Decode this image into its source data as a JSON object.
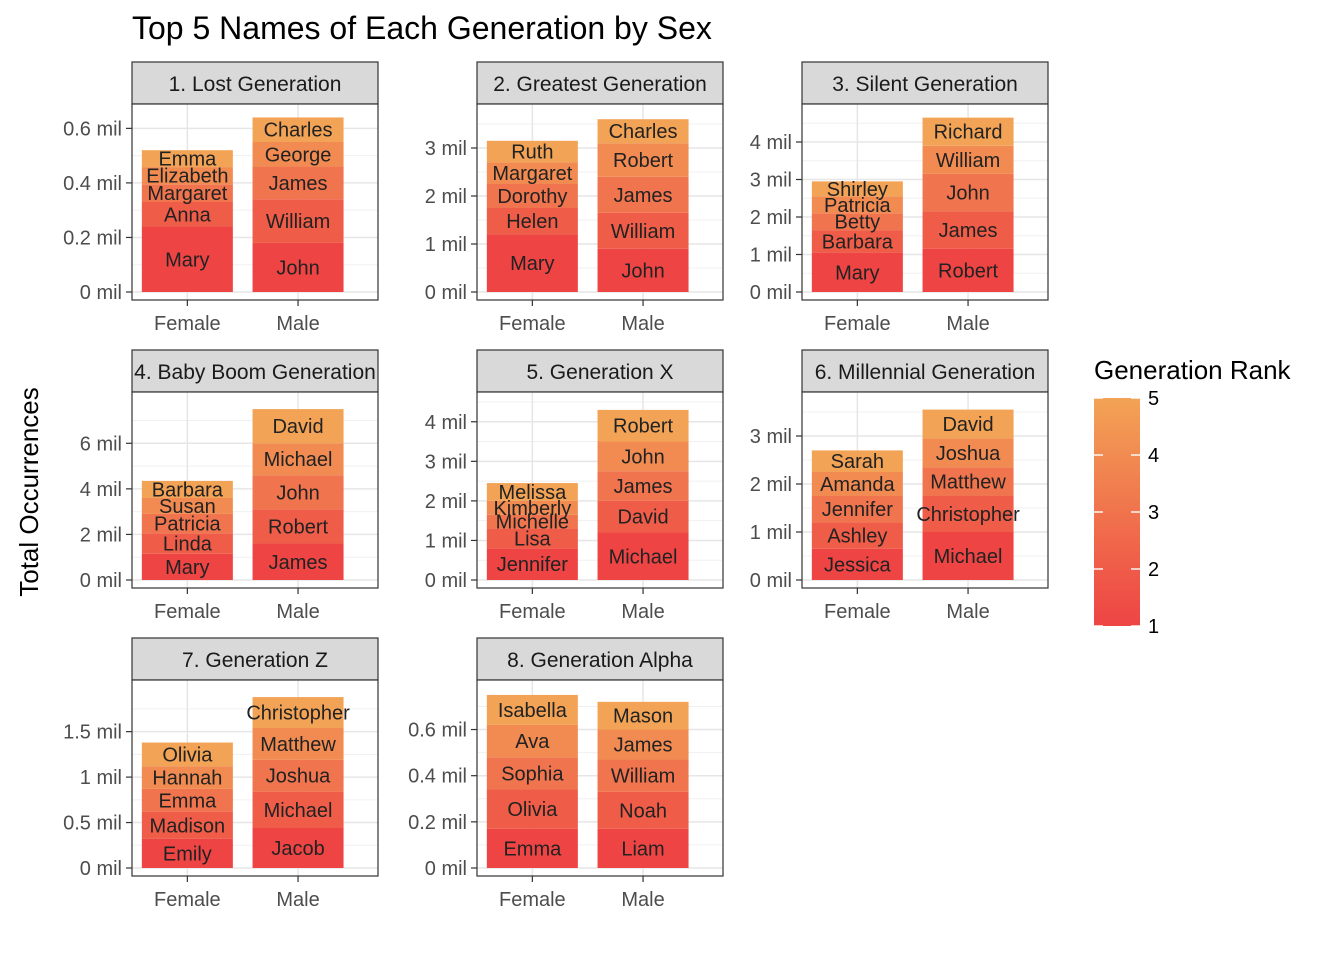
{
  "chart_data": {
    "type": "bar",
    "stacked": true,
    "title": "Top 5 Names of Each Generation by Sex",
    "ylabel": "Total Occurrences",
    "xlabel": "",
    "categories": [
      "Female",
      "Male"
    ],
    "y_unit_label": "mil",
    "legend": {
      "title": "Generation Rank",
      "position": "right",
      "min": 1,
      "max": 5,
      "ticks": [
        "1",
        "2",
        "3",
        "4",
        "5"
      ],
      "color_low": "#ee4444",
      "color_high": "#f2a355"
    },
    "panels": [
      {
        "strip": "1. Lost Generation",
        "y_ticks": [
          0,
          0.2,
          0.4,
          0.6
        ],
        "y_tick_labels": [
          "0 mil",
          "0.2 mil",
          "0.4 mil",
          "0.6 mil"
        ],
        "ylim": [
          0,
          0.66
        ],
        "stacks": [
          [
            {
              "name": "Mary",
              "rank": 1,
              "value": 0.24
            },
            {
              "name": "Anna",
              "rank": 2,
              "value": 0.09
            },
            {
              "name": "Margaret",
              "rank": 3,
              "value": 0.065
            },
            {
              "name": "Elizabeth",
              "rank": 4,
              "value": 0.063
            },
            {
              "name": "Emma",
              "rank": 5,
              "value": 0.062
            }
          ],
          [
            {
              "name": "John",
              "rank": 1,
              "value": 0.18
            },
            {
              "name": "William",
              "rank": 2,
              "value": 0.16
            },
            {
              "name": "James",
              "rank": 3,
              "value": 0.12
            },
            {
              "name": "George",
              "rank": 4,
              "value": 0.09
            },
            {
              "name": "Charles",
              "rank": 5,
              "value": 0.09
            }
          ]
        ]
      },
      {
        "strip": "2. Greatest Generation",
        "y_ticks": [
          0,
          1,
          2,
          3
        ],
        "y_tick_labels": [
          "0 mil",
          "1 mil",
          "2 mil",
          "3 mil"
        ],
        "ylim": [
          0,
          3.75
        ],
        "stacks": [
          [
            {
              "name": "Mary",
              "rank": 1,
              "value": 1.2
            },
            {
              "name": "Helen",
              "rank": 2,
              "value": 0.55
            },
            {
              "name": "Dorothy",
              "rank": 3,
              "value": 0.5
            },
            {
              "name": "Margaret",
              "rank": 4,
              "value": 0.45
            },
            {
              "name": "Ruth",
              "rank": 5,
              "value": 0.45
            }
          ],
          [
            {
              "name": "John",
              "rank": 1,
              "value": 0.9
            },
            {
              "name": "William",
              "rank": 2,
              "value": 0.75
            },
            {
              "name": "James",
              "rank": 3,
              "value": 0.75
            },
            {
              "name": "Robert",
              "rank": 4,
              "value": 0.7
            },
            {
              "name": "Charles",
              "rank": 5,
              "value": 0.5
            }
          ]
        ]
      },
      {
        "strip": "3. Silent Generation",
        "y_ticks": [
          0,
          1,
          2,
          3,
          4
        ],
        "y_tick_labels": [
          "0 mil",
          "1 mil",
          "2 mil",
          "3 mil",
          "4 mil"
        ],
        "ylim": [
          0,
          4.8
        ],
        "stacks": [
          [
            {
              "name": "Mary",
              "rank": 1,
              "value": 1.05
            },
            {
              "name": "Barbara",
              "rank": 2,
              "value": 0.6
            },
            {
              "name": "Betty",
              "rank": 3,
              "value": 0.45
            },
            {
              "name": "Patricia",
              "rank": 4,
              "value": 0.45
            },
            {
              "name": "Shirley",
              "rank": 5,
              "value": 0.4
            }
          ],
          [
            {
              "name": "Robert",
              "rank": 1,
              "value": 1.15
            },
            {
              "name": "James",
              "rank": 2,
              "value": 1.0
            },
            {
              "name": "John",
              "rank": 3,
              "value": 1.0
            },
            {
              "name": "William",
              "rank": 4,
              "value": 0.75
            },
            {
              "name": "Richard",
              "rank": 5,
              "value": 0.75
            }
          ]
        ]
      },
      {
        "strip": "4. Baby Boom Generation",
        "y_ticks": [
          0,
          2,
          4,
          6
        ],
        "y_tick_labels": [
          "0 mil",
          "2 mil",
          "4 mil",
          "6 mil"
        ],
        "ylim": [
          0,
          7.9
        ],
        "stacks": [
          [
            {
              "name": "Mary",
              "rank": 1,
              "value": 1.15
            },
            {
              "name": "Linda",
              "rank": 2,
              "value": 0.9
            },
            {
              "name": "Patricia",
              "rank": 3,
              "value": 0.85
            },
            {
              "name": "Susan",
              "rank": 4,
              "value": 0.7
            },
            {
              "name": "Barbara",
              "rank": 5,
              "value": 0.75
            }
          ],
          [
            {
              "name": "James",
              "rank": 1,
              "value": 1.6
            },
            {
              "name": "Robert",
              "rank": 2,
              "value": 1.5
            },
            {
              "name": "John",
              "rank": 3,
              "value": 1.5
            },
            {
              "name": "Michael",
              "rank": 4,
              "value": 1.4
            },
            {
              "name": "David",
              "rank": 5,
              "value": 1.5
            }
          ]
        ]
      },
      {
        "strip": "5. Generation X",
        "y_ticks": [
          0,
          1,
          2,
          3,
          4
        ],
        "y_tick_labels": [
          "0 mil",
          "1 mil",
          "2 mil",
          "3 mil",
          "4 mil"
        ],
        "ylim": [
          0,
          4.55
        ],
        "stacks": [
          [
            {
              "name": "Jennifer",
              "rank": 1,
              "value": 0.8
            },
            {
              "name": "Lisa",
              "rank": 2,
              "value": 0.5
            },
            {
              "name": "Michelle",
              "rank": 3,
              "value": 0.35
            },
            {
              "name": "Kimberly",
              "rank": 4,
              "value": 0.35
            },
            {
              "name": "Melissa",
              "rank": 5,
              "value": 0.45
            }
          ],
          [
            {
              "name": "Michael",
              "rank": 1,
              "value": 1.2
            },
            {
              "name": "David",
              "rank": 2,
              "value": 0.8
            },
            {
              "name": "James",
              "rank": 3,
              "value": 0.75
            },
            {
              "name": "John",
              "rank": 4,
              "value": 0.75
            },
            {
              "name": "Robert",
              "rank": 5,
              "value": 0.8
            }
          ]
        ]
      },
      {
        "strip": "6. Millennial Generation",
        "y_ticks": [
          0,
          1,
          2,
          3
        ],
        "y_tick_labels": [
          "0 mil",
          "1 mil",
          "2 mil",
          "3 mil"
        ],
        "ylim": [
          0,
          3.75
        ],
        "stacks": [
          [
            {
              "name": "Jessica",
              "rank": 1,
              "value": 0.65
            },
            {
              "name": "Ashley",
              "rank": 2,
              "value": 0.55
            },
            {
              "name": "Jennifer",
              "rank": 3,
              "value": 0.55
            },
            {
              "name": "Amanda",
              "rank": 4,
              "value": 0.5
            },
            {
              "name": "Sarah",
              "rank": 5,
              "value": 0.45
            }
          ],
          [
            {
              "name": "Michael",
              "rank": 1,
              "value": 1.0
            },
            {
              "name": "Christopher",
              "rank": 2,
              "value": 0.75
            },
            {
              "name": "Matthew",
              "rank": 3,
              "value": 0.6
            },
            {
              "name": "Joshua",
              "rank": 4,
              "value": 0.6
            },
            {
              "name": "David",
              "rank": 5,
              "value": 0.6
            }
          ]
        ]
      },
      {
        "strip": "7. Generation Z",
        "y_ticks": [
          0,
          0.5,
          1,
          1.5
        ],
        "y_tick_labels": [
          "0 mil",
          "0.5 mil",
          "1 mil",
          "1.5 mil"
        ],
        "ylim": [
          0,
          1.98
        ],
        "stacks": [
          [
            {
              "name": "Emily",
              "rank": 1,
              "value": 0.32
            },
            {
              "name": "Madison",
              "rank": 2,
              "value": 0.3
            },
            {
              "name": "Emma",
              "rank": 3,
              "value": 0.25
            },
            {
              "name": "Hannah",
              "rank": 4,
              "value": 0.25
            },
            {
              "name": "Olivia",
              "rank": 5,
              "value": 0.26
            }
          ],
          [
            {
              "name": "Jacob",
              "rank": 1,
              "value": 0.44
            },
            {
              "name": "Michael",
              "rank": 2,
              "value": 0.4
            },
            {
              "name": "Joshua",
              "rank": 3,
              "value": 0.35
            },
            {
              "name": "Matthew",
              "rank": 4,
              "value": 0.35
            },
            {
              "name": "Christopher",
              "rank": 5,
              "value": 0.34
            }
          ]
        ]
      },
      {
        "strip": "8. Generation Alpha",
        "y_ticks": [
          0,
          0.2,
          0.4,
          0.6
        ],
        "y_tick_labels": [
          "0 mil",
          "0.2 mil",
          "0.4 mil",
          "0.6 mil"
        ],
        "ylim": [
          0,
          0.78
        ],
        "stacks": [
          [
            {
              "name": "Emma",
              "rank": 1,
              "value": 0.17
            },
            {
              "name": "Olivia",
              "rank": 2,
              "value": 0.17
            },
            {
              "name": "Sophia",
              "rank": 3,
              "value": 0.14
            },
            {
              "name": "Ava",
              "rank": 4,
              "value": 0.14
            },
            {
              "name": "Isabella",
              "rank": 5,
              "value": 0.13
            }
          ],
          [
            {
              "name": "Liam",
              "rank": 1,
              "value": 0.17
            },
            {
              "name": "Noah",
              "rank": 2,
              "value": 0.16
            },
            {
              "name": "William",
              "rank": 3,
              "value": 0.14
            },
            {
              "name": "James",
              "rank": 4,
              "value": 0.13
            },
            {
              "name": "Mason",
              "rank": 5,
              "value": 0.12
            }
          ]
        ]
      }
    ]
  }
}
